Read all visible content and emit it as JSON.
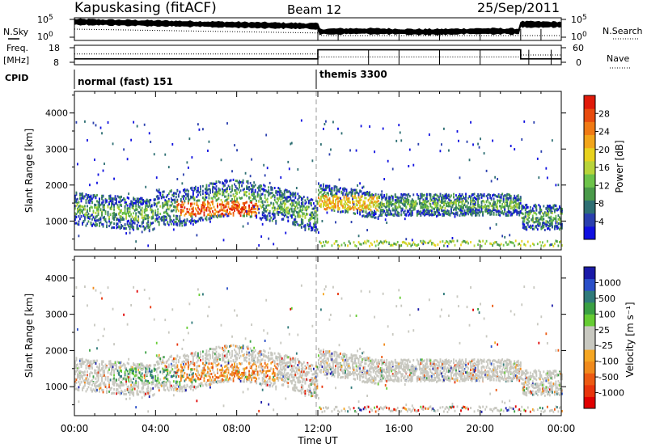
{
  "header": {
    "station": "Kapuskasing (fitACF)",
    "beam": "Beam 12",
    "date": "25/Sep/2011"
  },
  "labels": {
    "nsky": "N.Sky",
    "freq": "Freq.",
    "freq_unit": "[MHz]",
    "cpid": "CPID",
    "nsearch": "N.Search",
    "nave": "Nave",
    "cpid_left": "normal (fast) 151",
    "cpid_right": "themis 3300",
    "xlabel": "Time UT"
  },
  "chart_data": [
    {
      "type": "line",
      "name": "noise-panel",
      "left_axis": {
        "ticks": [
          "10^5",
          "10^0"
        ],
        "scale": "log"
      },
      "right_axis": {
        "ticks": [
          "10^5",
          "10^0"
        ],
        "scale": "log"
      }
    },
    {
      "type": "line",
      "name": "frequency-nave-panel",
      "left_axis": {
        "ticks": [
          8,
          18
        ],
        "range": [
          8,
          18
        ]
      },
      "right_axis": {
        "ticks": [
          0,
          60
        ],
        "range": [
          0,
          60
        ]
      },
      "mode_change_hour": 12.0
    },
    {
      "type": "heatmap",
      "name": "power",
      "ylabel": "Slant Range [km]",
      "yticks": [
        1000,
        2000,
        3000,
        4000
      ],
      "ylim": [
        200,
        4600
      ],
      "xlim": [
        0,
        24
      ],
      "xtick_labels": [
        "00:00",
        "04:00",
        "08:00",
        "12:00",
        "16:00",
        "20:00",
        "00:00"
      ],
      "colorbar": {
        "label": "Power [dB]",
        "ticks": [
          "4",
          "8",
          "12",
          "16",
          "20",
          "24",
          "28"
        ],
        "colors": [
          "#1010e0",
          "#2a3fae",
          "#2e6f73",
          "#4a9a4a",
          "#6dc34a",
          "#b8d43a",
          "#e8d21e",
          "#f2a51a",
          "#f07a14",
          "#e84b0e",
          "#e01a0a"
        ]
      }
    },
    {
      "type": "heatmap",
      "name": "velocity",
      "ylabel": "Slant Range [km]",
      "yticks": [
        1000,
        2000,
        3000,
        4000
      ],
      "ylim": [
        200,
        4600
      ],
      "xlim": [
        0,
        24
      ],
      "xtick_labels": [
        "00:00",
        "04:00",
        "08:00",
        "12:00",
        "16:00",
        "20:00",
        "00:00"
      ],
      "colorbar": {
        "label": "Velocity [m s⁻¹]",
        "ticks": [
          "1000",
          "500",
          "100",
          "25",
          "-25",
          "-100",
          "-500",
          "-1000"
        ],
        "colors": [
          "#1a1aa8",
          "#2a4fc8",
          "#2f7a7a",
          "#3aa043",
          "#66cc33",
          "#c8c8c0",
          "#c8c8c0",
          "#f5a623",
          "#f08a1c",
          "#ec5a12",
          "#e8350c",
          "#e00000"
        ]
      }
    }
  ]
}
